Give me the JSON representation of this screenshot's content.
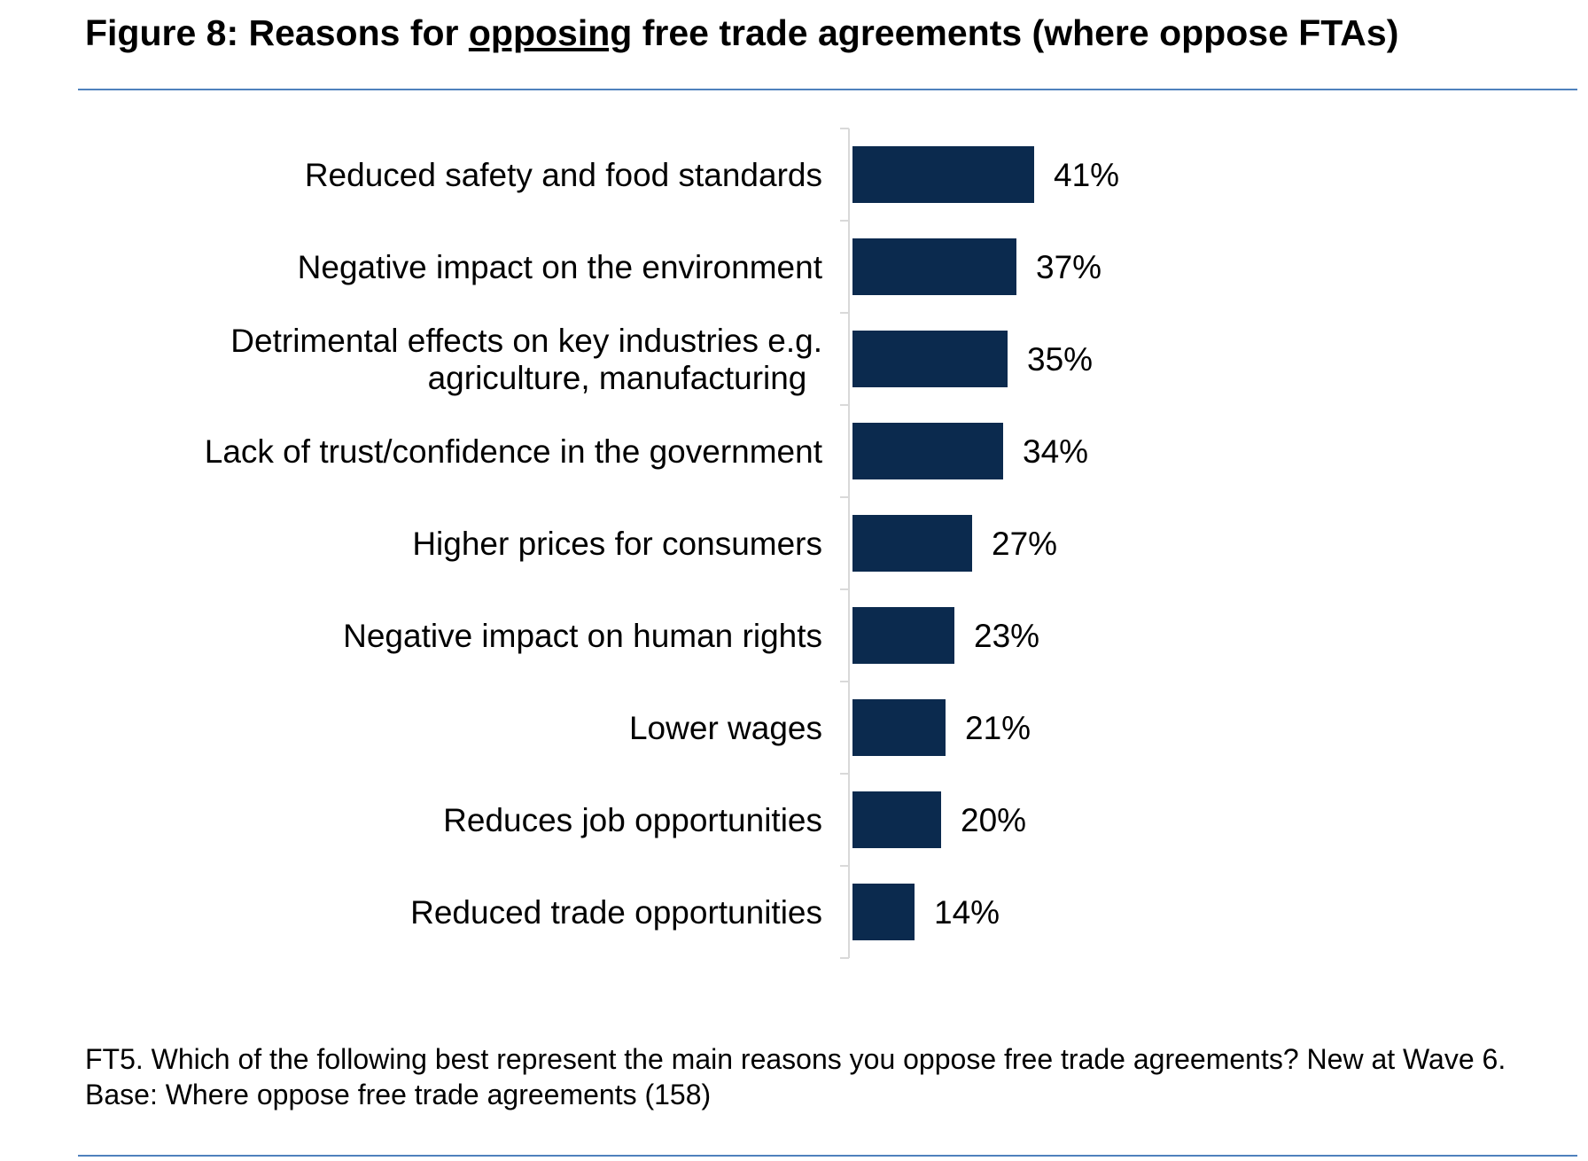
{
  "header": {
    "title_prefix": "Figure 8: Reasons for ",
    "title_emphasis": "opposing",
    "title_suffix": " free trade agreements (where oppose FTAs)"
  },
  "chart_data": {
    "type": "bar",
    "orientation": "horizontal",
    "categories": [
      [
        "Reduced safety and food standards"
      ],
      [
        "Negative impact on the environment"
      ],
      [
        "Detrimental effects on key industries e.g.",
        "agriculture, manufacturing"
      ],
      [
        "Lack of trust/confidence in the government"
      ],
      [
        "Higher prices for consumers"
      ],
      [
        "Negative impact on human rights"
      ],
      [
        "Lower wages"
      ],
      [
        "Reduces job opportunities"
      ],
      [
        "Reduced trade opportunities"
      ]
    ],
    "values": [
      41,
      37,
      35,
      34,
      27,
      23,
      21,
      20,
      14
    ],
    "value_labels": [
      "41%",
      "37%",
      "35%",
      "34%",
      "27%",
      "23%",
      "21%",
      "20%",
      "14%"
    ],
    "xlim": [
      0,
      100
    ],
    "bar_color": "#0b2a4e",
    "grid": false,
    "legend": "none"
  },
  "footnote": {
    "question": "FT5. Which of the following best represent the main reasons you oppose free trade agreements? New at Wave 6.",
    "base": "Base: Where oppose free trade agreements (158)"
  },
  "colors": {
    "bar": "#0b2a4e",
    "rule": "#4f81bd",
    "axis": "#d9d9d9"
  }
}
